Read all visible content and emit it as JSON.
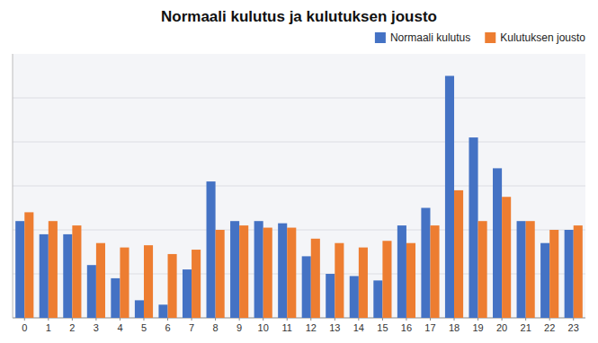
{
  "chart_data": {
    "type": "bar",
    "title": "Normaali kulutus ja kulutuksen jousto",
    "categories": [
      0,
      1,
      2,
      3,
      4,
      5,
      6,
      7,
      8,
      9,
      10,
      11,
      12,
      13,
      14,
      15,
      16,
      17,
      18,
      19,
      20,
      21,
      22,
      23
    ],
    "series": [
      {
        "name": "Normaali kulutus",
        "color": "#4472C4",
        "values": [
          2.2,
          1.9,
          1.9,
          1.2,
          0.9,
          0.4,
          0.3,
          1.1,
          3.1,
          2.2,
          2.2,
          2.15,
          1.4,
          1.0,
          0.95,
          0.85,
          2.1,
          2.5,
          5.5,
          4.1,
          3.4,
          2.2,
          1.7,
          2.0
        ]
      },
      {
        "name": "Kulutuksen jousto",
        "color": "#ED7D31",
        "values": [
          2.4,
          2.2,
          2.1,
          1.7,
          1.6,
          1.65,
          1.45,
          1.55,
          2.0,
          2.1,
          2.05,
          2.05,
          1.8,
          1.7,
          1.6,
          1.75,
          1.7,
          2.1,
          2.9,
          2.2,
          2.75,
          2.2,
          2.0,
          2.1
        ]
      }
    ],
    "ylim": [
      0,
      6.0
    ],
    "yticks": [
      0,
      1,
      2,
      3,
      4,
      5
    ],
    "grid": true,
    "legend": "upper right",
    "tick_labels": "x"
  }
}
